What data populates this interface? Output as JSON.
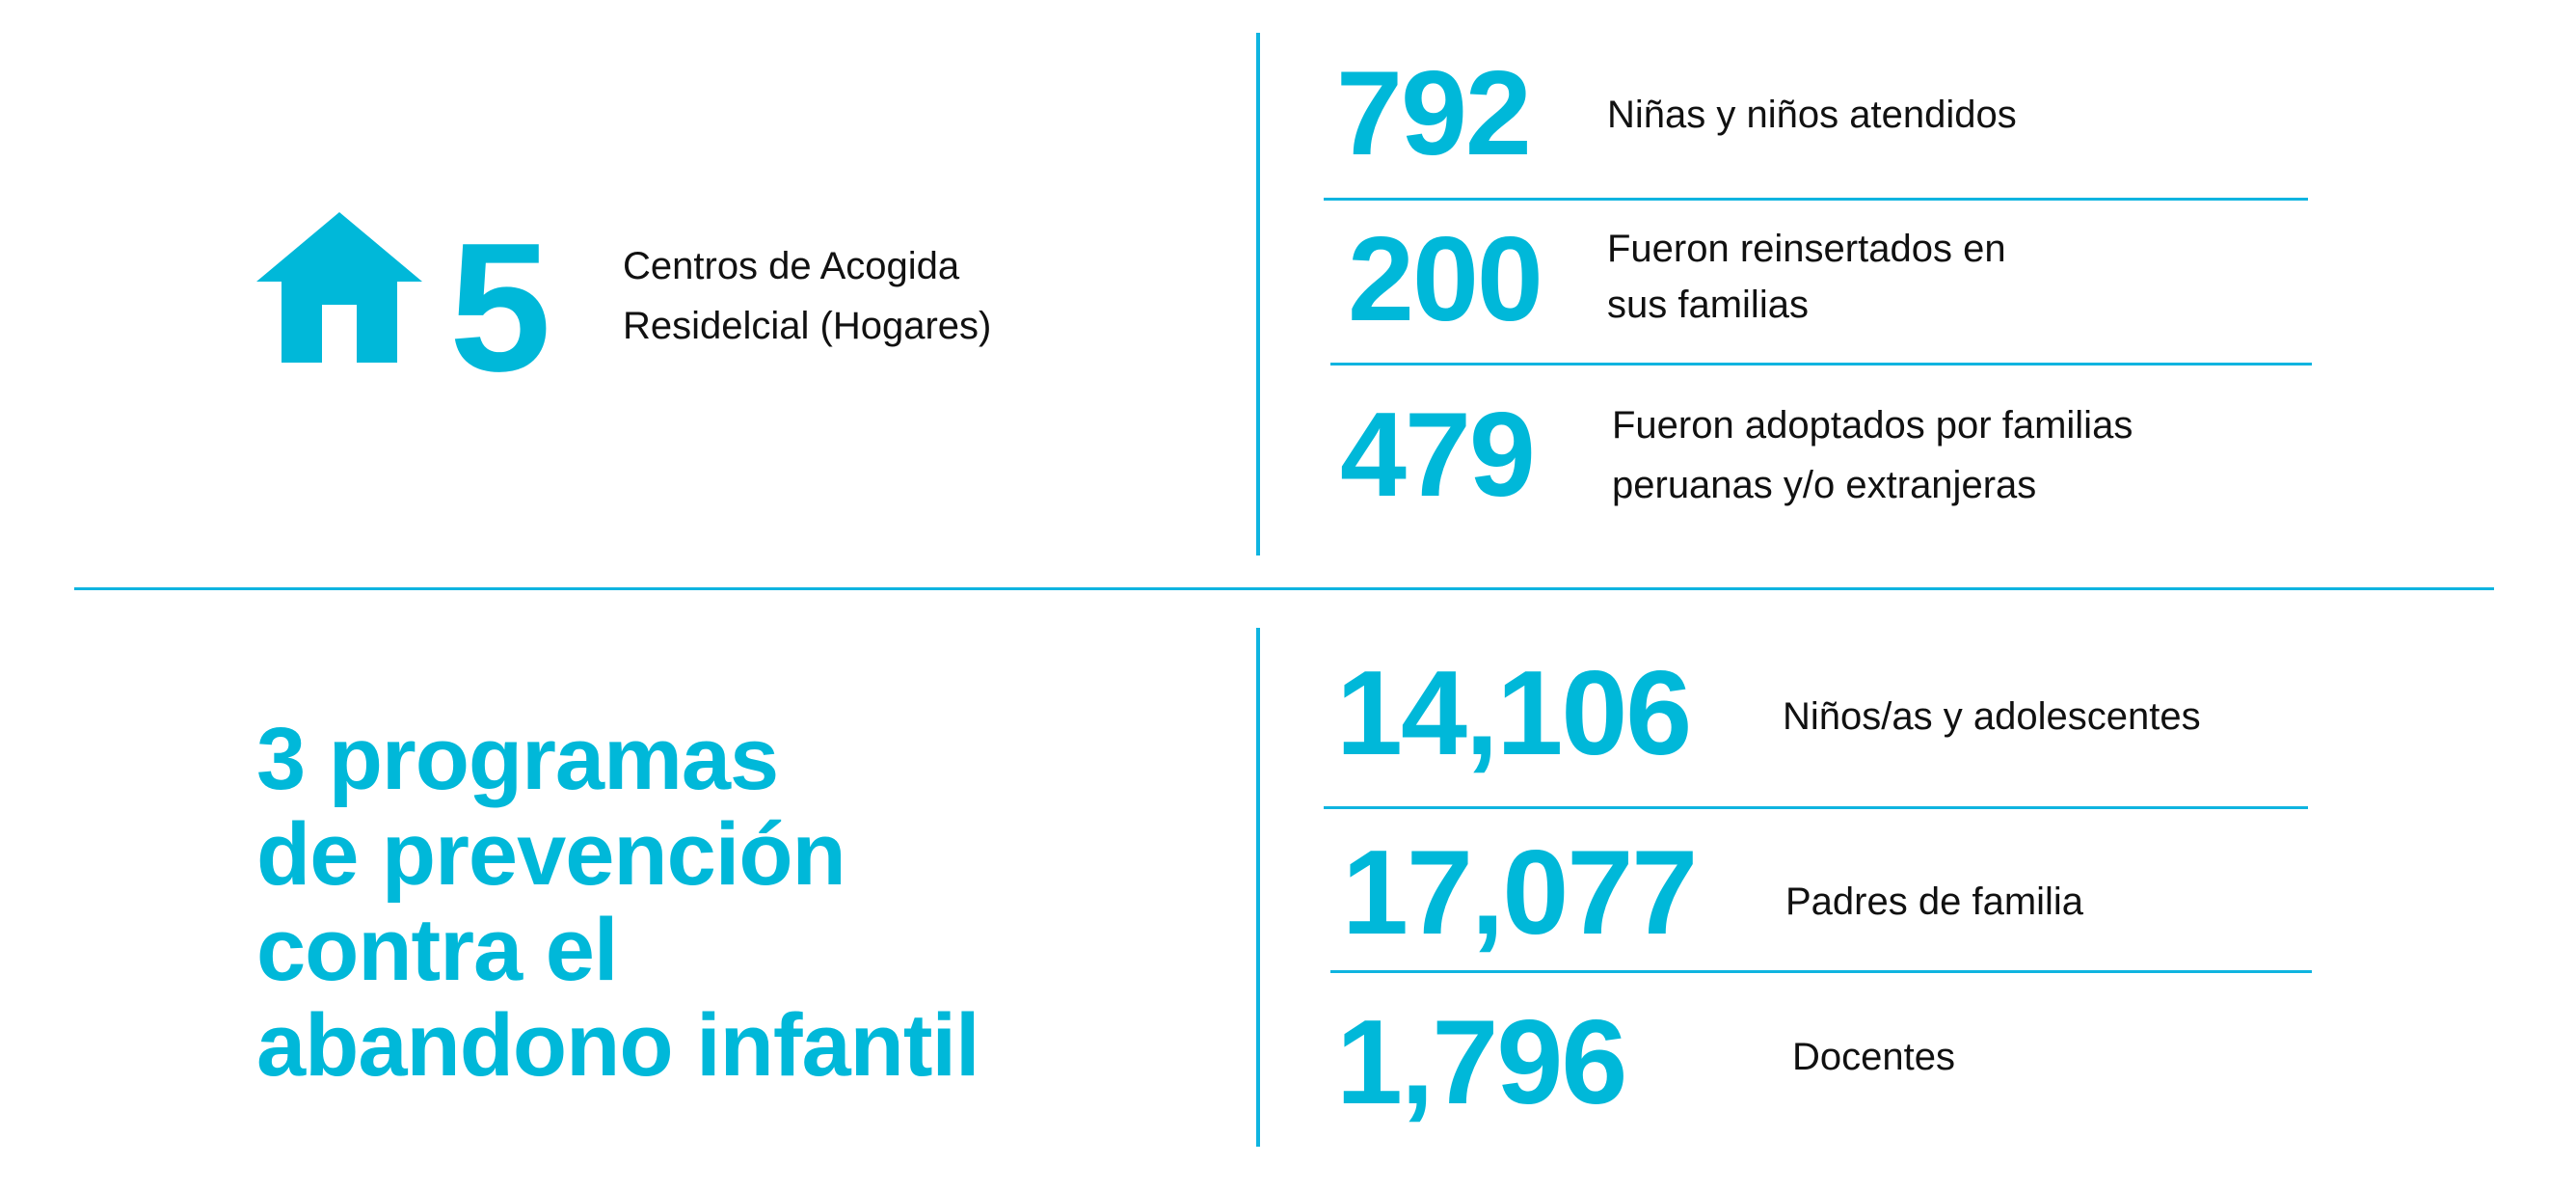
{
  "accent_color": "#00b8d9",
  "top": {
    "icon": "house-icon",
    "count": "5",
    "description": "Centros de Acogida\nResidelcial (Hogares)",
    "stats": [
      {
        "value": "792",
        "label": "Niñas y niños atendidos"
      },
      {
        "value": "200",
        "label": "Fueron reinsertados en\nsus familias"
      },
      {
        "value": "479",
        "label": "Fueron adoptados por familias\nperuanas y/o extranjeras"
      }
    ]
  },
  "bottom": {
    "heading": "3 programas\nde prevención\ncontra el\nabandono infantil",
    "stats": [
      {
        "value": "14,106",
        "label": "Niños/as y adolescentes"
      },
      {
        "value": "17,077",
        "label": "Padres de familia"
      },
      {
        "value": "1,796",
        "label": "Docentes"
      }
    ]
  }
}
